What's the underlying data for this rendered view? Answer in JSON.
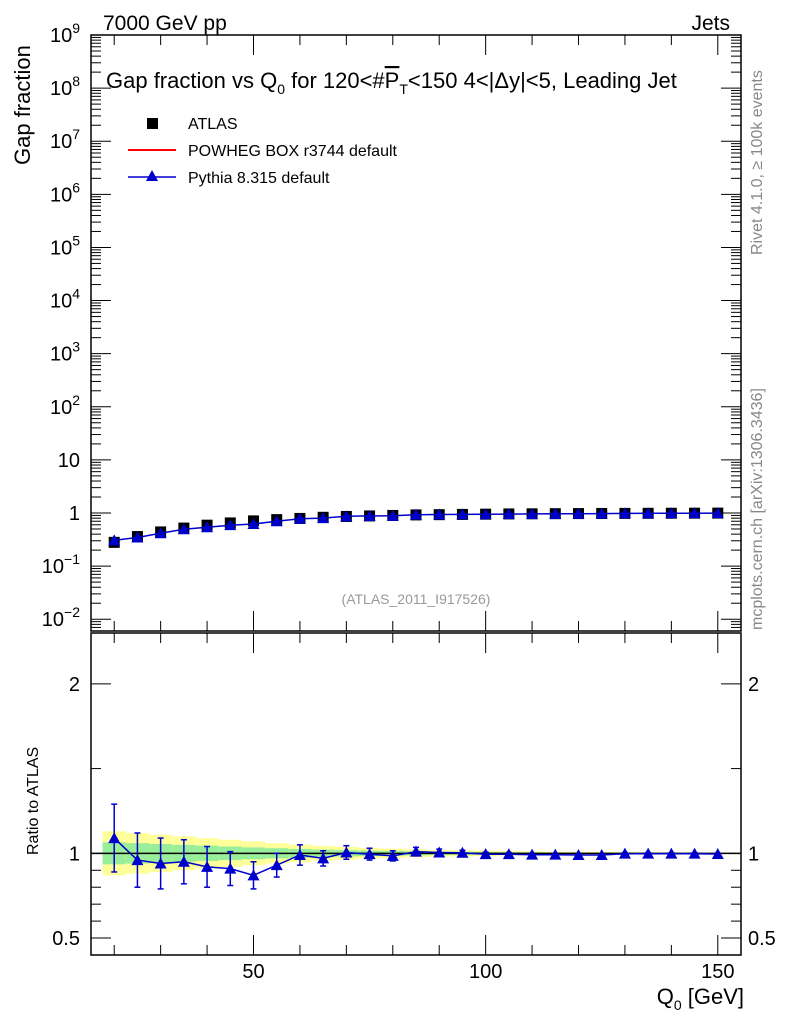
{
  "header": {
    "left": "7000 GeV pp",
    "right": "Jets",
    "rivet_note": "Rivet 4.1.0, ≥ 100k events",
    "mcplots_note": "mcplots.cern.ch [arXiv:1306.3436]",
    "analysis_id": "(ATLAS_2011_I917526)"
  },
  "colors": {
    "atlas": "#000000",
    "powheg": "#ff0000",
    "pythia": "#0000cc",
    "band_inner": "#99ee99",
    "band_outer": "#ffff99"
  },
  "chart_data": [
    {
      "type": "scatter",
      "title_parts": {
        "prefix": "Gap fraction vs Q",
        "prefix_sub": "0",
        "mid": " for 120<#",
        "var": "P",
        "var_sub": "T",
        "suffix": "<150  4<|Δy|<5, Leading Jet"
      },
      "ylabel": "Gap fraction",
      "yscale": "log",
      "ylim": [
        0.006,
        1000000000
      ],
      "xlim": [
        15,
        155
      ],
      "ytick_labels": [
        {
          "base": "10",
          "exp": "−2",
          "value": 0.01
        },
        {
          "base": "10",
          "exp": "−1",
          "value": 0.1
        },
        {
          "base": "1",
          "exp": "",
          "value": 1
        },
        {
          "base": "10",
          "exp": "",
          "value": 10
        },
        {
          "base": "10",
          "exp": "2",
          "value": 100
        },
        {
          "base": "10",
          "exp": "3",
          "value": 1000
        },
        {
          "base": "10",
          "exp": "4",
          "value": 10000
        },
        {
          "base": "10",
          "exp": "5",
          "value": 100000
        },
        {
          "base": "10",
          "exp": "6",
          "value": 1000000
        },
        {
          "base": "10",
          "exp": "7",
          "value": 10000000
        },
        {
          "base": "10",
          "exp": "8",
          "value": 100000000
        },
        {
          "base": "10",
          "exp": "9",
          "value": 1000000000
        }
      ],
      "legend": [
        {
          "label": "ATLAS",
          "style": "square"
        },
        {
          "label": "POWHEG BOX r3744 default",
          "style": "line"
        },
        {
          "label": "Pythia 8.315 default",
          "style": "triangle"
        }
      ],
      "x": [
        20,
        25,
        30,
        35,
        40,
        45,
        50,
        55,
        60,
        65,
        70,
        75,
        80,
        85,
        90,
        95,
        100,
        105,
        110,
        115,
        120,
        125,
        130,
        135,
        140,
        145,
        150
      ],
      "series": [
        {
          "name": "ATLAS",
          "values": [
            0.28,
            0.36,
            0.44,
            0.52,
            0.59,
            0.65,
            0.71,
            0.75,
            0.79,
            0.83,
            0.86,
            0.88,
            0.9,
            0.92,
            0.93,
            0.94,
            0.95,
            0.96,
            0.965,
            0.97,
            0.975,
            0.98,
            0.983,
            0.986,
            0.989,
            0.992,
            0.995
          ]
        },
        {
          "name": "Pythia 8.315 default",
          "values": [
            0.305,
            0.345,
            0.415,
            0.495,
            0.54,
            0.59,
            0.62,
            0.7,
            0.78,
            0.8,
            0.865,
            0.88,
            0.885,
            0.93,
            0.935,
            0.94,
            0.945,
            0.955,
            0.96,
            0.965,
            0.97,
            0.975,
            0.982,
            0.985,
            0.989,
            0.992,
            0.995
          ]
        }
      ]
    },
    {
      "type": "scatter",
      "ylabel": "Ratio to ATLAS",
      "xlabel_main": "Q",
      "xlabel_sub": "0",
      "xlabel_unit": " [GeV]",
      "ylim": [
        0.4,
        2.3
      ],
      "xlim": [
        15,
        155
      ],
      "xticks": [
        50,
        100,
        150
      ],
      "xtick_labels": [
        "50",
        "100",
        "150"
      ],
      "yticks": [
        0.5,
        1,
        2
      ],
      "ytick_labels": [
        "0.5",
        "1",
        "2"
      ],
      "x": [
        20,
        25,
        30,
        35,
        40,
        45,
        50,
        55,
        60,
        65,
        70,
        75,
        80,
        85,
        90,
        95,
        100,
        105,
        110,
        115,
        120,
        125,
        130,
        135,
        140,
        145,
        150
      ],
      "band_inner": [
        0.065,
        0.06,
        0.055,
        0.05,
        0.045,
        0.04,
        0.035,
        0.03,
        0.026,
        0.022,
        0.019,
        0.016,
        0.014,
        0.012,
        0.01,
        0.009,
        0.008,
        0.007,
        0.006,
        0.005,
        0.005,
        0.004,
        0.004,
        0.003,
        0.003,
        0.003,
        0.002
      ],
      "band_outer": [
        0.13,
        0.12,
        0.11,
        0.1,
        0.09,
        0.08,
        0.07,
        0.06,
        0.052,
        0.044,
        0.038,
        0.032,
        0.028,
        0.024,
        0.02,
        0.018,
        0.016,
        0.014,
        0.012,
        0.01,
        0.009,
        0.008,
        0.007,
        0.006,
        0.005,
        0.005,
        0.004
      ],
      "series": [
        {
          "name": "Pythia 8.315 default",
          "values": [
            1.09,
            0.96,
            0.94,
            0.95,
            0.92,
            0.91,
            0.87,
            0.93,
            0.99,
            0.97,
            1.005,
            0.995,
            0.985,
            1.01,
            1.005,
            1.003,
            0.995,
            0.995,
            0.992,
            0.992,
            0.99,
            0.99,
            0.998,
            0.998,
            0.998,
            0.998,
            0.996
          ],
          "err": [
            0.2,
            0.16,
            0.15,
            0.13,
            0.12,
            0.1,
            0.08,
            0.07,
            0.06,
            0.045,
            0.04,
            0.035,
            0.03,
            0.025,
            0.02,
            0.015,
            0.012,
            0.01,
            0.009,
            0.008,
            0.007,
            0.007,
            0.006,
            0.006,
            0.005,
            0.005,
            0.005
          ]
        }
      ]
    }
  ]
}
